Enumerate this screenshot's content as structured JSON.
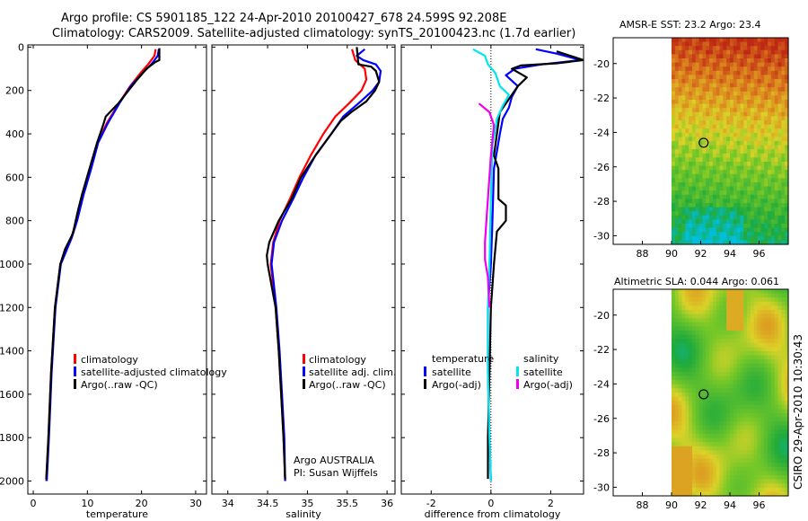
{
  "header": {
    "title_line1": "Argo profile: CS 5901185_122 24-Apr-2010 20100427_678 24.599S 92.208E",
    "title_line2": "Climatology: CARS2009. Satellite-adjusted climatology: synTS_20100423.nc (1.7d earlier)"
  },
  "colors": {
    "climatology": "#ff0000",
    "satellite": "#0000ff",
    "argo": "#000000",
    "salinity_satellite": "#00e5ee",
    "salinity_argo": "#ee00ee"
  },
  "chart_data": [
    {
      "id": "temperature",
      "type": "line",
      "xlabel": "temperature",
      "xlim": [
        -1,
        32
      ],
      "ylim": [
        2060,
        -10
      ],
      "xticks": [
        0,
        10,
        20,
        30
      ],
      "yticks": [
        0,
        200,
        400,
        600,
        800,
        1000,
        1200,
        1400,
        1600,
        1800,
        2000
      ],
      "legend": [
        "climatology",
        "satellite-adjusted climatology",
        "Argo(..raw -QC)"
      ],
      "series": [
        {
          "name": "climatology",
          "color_key": "climatology",
          "points": [
            [
              22.6,
              10
            ],
            [
              22.4,
              40
            ],
            [
              21.2,
              80
            ],
            [
              19.8,
              120
            ],
            [
              17.9,
              180
            ],
            [
              15.8,
              260
            ],
            [
              13.6,
              350
            ],
            [
              11.9,
              440
            ],
            [
              10.5,
              560
            ],
            [
              9.2,
              680
            ],
            [
              8,
              800
            ],
            [
              7,
              880
            ],
            [
              5,
              1000
            ],
            [
              4,
              1200
            ],
            [
              3.3,
              1500
            ],
            [
              2.8,
              1800
            ],
            [
              2.4,
              2000
            ]
          ]
        },
        {
          "name": "satellite-adjusted climatology",
          "color_key": "satellite",
          "points": [
            [
              23.2,
              10
            ],
            [
              23,
              40
            ],
            [
              21.8,
              80
            ],
            [
              20.2,
              120
            ],
            [
              18,
              180
            ],
            [
              15.9,
              260
            ],
            [
              13.8,
              350
            ],
            [
              12,
              440
            ],
            [
              10.7,
              560
            ],
            [
              9.3,
              680
            ],
            [
              8.1,
              800
            ],
            [
              7.1,
              880
            ],
            [
              5.1,
              1000
            ],
            [
              4.1,
              1200
            ],
            [
              3.4,
              1500
            ],
            [
              2.9,
              1800
            ],
            [
              2.5,
              2000
            ]
          ]
        },
        {
          "name": "Argo(..raw -QC)",
          "color_key": "argo",
          "points": [
            [
              23.3,
              5
            ],
            [
              23.3,
              60
            ],
            [
              22.5,
              70
            ],
            [
              20.9,
              100
            ],
            [
              19.2,
              150
            ],
            [
              17.6,
              200
            ],
            [
              15.7,
              260
            ],
            [
              13.4,
              320
            ],
            [
              12.9,
              360
            ],
            [
              11.8,
              440
            ],
            [
              10.4,
              560
            ],
            [
              9,
              680
            ],
            [
              8.2,
              760
            ],
            [
              7.3,
              860
            ],
            [
              5.9,
              930
            ],
            [
              5,
              1000
            ],
            [
              4,
              1200
            ],
            [
              3.3,
              1500
            ],
            [
              2.8,
              1800
            ],
            [
              2.4,
              1990
            ]
          ]
        }
      ]
    },
    {
      "id": "salinity",
      "type": "line",
      "xlabel": "salinity",
      "xlim": [
        33.8,
        36.1
      ],
      "ylim": [
        2060,
        -10
      ],
      "xticks": [
        34,
        34.5,
        35,
        35.5,
        36
      ],
      "yticks": [],
      "legend": [
        "climatology",
        "satellite adj. clim.",
        "Argo(..raw -QC)"
      ],
      "footnote": [
        "Argo AUSTRALIA",
        "PI: Susan Wijffels"
      ],
      "series": [
        {
          "name": "climatology",
          "color_key": "climatology",
          "points": [
            [
              35.56,
              10
            ],
            [
              35.6,
              60
            ],
            [
              35.72,
              100
            ],
            [
              35.74,
              150
            ],
            [
              35.68,
              200
            ],
            [
              35.52,
              260
            ],
            [
              35.35,
              320
            ],
            [
              35.2,
              400
            ],
            [
              35.04,
              500
            ],
            [
              34.9,
              600
            ],
            [
              34.78,
              700
            ],
            [
              34.65,
              800
            ],
            [
              34.57,
              900
            ],
            [
              34.54,
              1000
            ],
            [
              34.57,
              1100
            ],
            [
              34.6,
              1200
            ],
            [
              34.64,
              1400
            ],
            [
              34.67,
              1600
            ],
            [
              34.7,
              1800
            ],
            [
              34.72,
              2000
            ]
          ]
        },
        {
          "name": "satellite adj. clim.",
          "color_key": "satellite",
          "points": [
            [
              35.72,
              10
            ],
            [
              35.62,
              40
            ],
            [
              35.7,
              60
            ],
            [
              35.86,
              80
            ],
            [
              35.92,
              110
            ],
            [
              35.9,
              160
            ],
            [
              35.82,
              200
            ],
            [
              35.67,
              250
            ],
            [
              35.45,
              320
            ],
            [
              35.3,
              400
            ],
            [
              35.1,
              500
            ],
            [
              34.95,
              600
            ],
            [
              34.82,
              700
            ],
            [
              34.68,
              800
            ],
            [
              34.58,
              900
            ],
            [
              34.55,
              1000
            ],
            [
              34.58,
              1100
            ],
            [
              34.61,
              1200
            ],
            [
              34.65,
              1400
            ],
            [
              34.68,
              1600
            ],
            [
              34.71,
              1800
            ],
            [
              34.72,
              2000
            ]
          ]
        },
        {
          "name": "Argo(..raw -QC)",
          "color_key": "argo",
          "points": [
            [
              35.62,
              0
            ],
            [
              35.64,
              80
            ],
            [
              35.8,
              90
            ],
            [
              35.86,
              110
            ],
            [
              35.9,
              160
            ],
            [
              35.85,
              200
            ],
            [
              35.74,
              250
            ],
            [
              35.55,
              300
            ],
            [
              35.42,
              340
            ],
            [
              35.3,
              400
            ],
            [
              35.1,
              500
            ],
            [
              34.92,
              600
            ],
            [
              34.8,
              700
            ],
            [
              34.64,
              800
            ],
            [
              34.52,
              900
            ],
            [
              34.49,
              960
            ],
            [
              34.5,
              1000
            ],
            [
              34.55,
              1100
            ],
            [
              34.6,
              1200
            ],
            [
              34.64,
              1400
            ],
            [
              34.67,
              1600
            ],
            [
              34.7,
              1800
            ],
            [
              34.72,
              1990
            ]
          ]
        }
      ]
    },
    {
      "id": "difference",
      "type": "line",
      "xlabel": "difference from climatology",
      "xlim": [
        -3,
        3.1
      ],
      "ylim": [
        2060,
        -10
      ],
      "xticks": [
        -2,
        0,
        2
      ],
      "yticks": [],
      "legend_headers": [
        "temperature",
        "salinity"
      ],
      "legend_temperature": [
        "satellite",
        "Argo(-adj)"
      ],
      "legend_salinity": [
        "satellite",
        "Argo(-adj)"
      ],
      "series": [
        {
          "name": "temperature satellite",
          "color_key": "satellite",
          "points": [
            [
              1.5,
              10
            ],
            [
              2.2,
              30
            ],
            [
              3,
              60
            ],
            [
              1.7,
              80
            ],
            [
              0.8,
              100
            ],
            [
              0.5,
              130
            ],
            [
              0.9,
              180
            ],
            [
              0.7,
              230
            ],
            [
              0.6,
              280
            ],
            [
              0.4,
              330
            ],
            [
              0.3,
              400
            ],
            [
              0.2,
              480
            ],
            [
              0.1,
              560
            ],
            [
              0.05,
              800
            ],
            [
              0,
              1000
            ],
            [
              -0.1,
              1200
            ],
            [
              -0.1,
              1500
            ],
            [
              -0.05,
              1800
            ],
            [
              0,
              2000
            ]
          ]
        },
        {
          "name": "temperature Argo(-adj)",
          "color_key": "argo",
          "points": [
            [
              2.2,
              20
            ],
            [
              3.1,
              60
            ],
            [
              2.2,
              75
            ],
            [
              1,
              85
            ],
            [
              0.7,
              100
            ],
            [
              1.2,
              140
            ],
            [
              0.9,
              180
            ],
            [
              0.6,
              240
            ],
            [
              0.3,
              300
            ],
            [
              0.2,
              400
            ],
            [
              0.1,
              500
            ],
            [
              0.25,
              560
            ],
            [
              0.25,
              700
            ],
            [
              0.5,
              730
            ],
            [
              0.5,
              800
            ],
            [
              0.2,
              850
            ],
            [
              0.1,
              1000
            ],
            [
              0,
              1200
            ],
            [
              -0.05,
              1500
            ],
            [
              -0.1,
              1800
            ],
            [
              -0.1,
              1990
            ]
          ]
        },
        {
          "name": "salinity satellite",
          "color_key": "salinity_satellite",
          "points": [
            [
              -0.6,
              10
            ],
            [
              -0.2,
              40
            ],
            [
              -0.1,
              80
            ],
            [
              0.15,
              120
            ],
            [
              0.3,
              180
            ],
            [
              0.6,
              220
            ],
            [
              0.4,
              270
            ],
            [
              0.2,
              330
            ],
            [
              0.15,
              380
            ],
            [
              0.05,
              450
            ],
            [
              0,
              700
            ],
            [
              -0.05,
              1000
            ],
            [
              -0.1,
              1200
            ],
            [
              -0.1,
              1500
            ],
            [
              -0.05,
              1800
            ],
            [
              0,
              2000
            ]
          ]
        },
        {
          "name": "salinity Argo(-adj)",
          "color_key": "salinity_argo",
          "points": [
            [
              -0.4,
              260
            ],
            [
              -0.05,
              300
            ],
            [
              0.1,
              360
            ],
            [
              0.05,
              430
            ],
            [
              0,
              500
            ],
            [
              -0.15,
              800
            ],
            [
              -0.2,
              900
            ],
            [
              -0.2,
              980
            ],
            [
              -0.1,
              1060
            ],
            [
              -0.05,
              1200
            ]
          ]
        }
      ]
    },
    {
      "id": "sst_map",
      "type": "heatmap",
      "title": "AMSR-E SST: 23.2 Argo: 23.4",
      "xlim": [
        86,
        98
      ],
      "ylim": [
        -30.5,
        -18.5
      ],
      "xticks": [
        88,
        90,
        92,
        94,
        96
      ],
      "yticks": [
        -20,
        -22,
        -24,
        -26,
        -28,
        -30
      ],
      "data_lon_range": [
        90,
        98
      ],
      "argo_position": [
        92.2,
        -24.6
      ]
    },
    {
      "id": "sla_map",
      "type": "heatmap",
      "title": "Altimetric SLA: 0.044 Argo: 0.061",
      "xlim": [
        86,
        98
      ],
      "ylim": [
        -30.5,
        -18.5
      ],
      "xticks": [
        88,
        90,
        92,
        94,
        96
      ],
      "yticks": [
        -20,
        -22,
        -24,
        -26,
        -28,
        -30
      ],
      "data_lon_range": [
        90,
        98
      ],
      "argo_position": [
        92.2,
        -24.6
      ]
    }
  ],
  "credit": "CSIRO 29-Apr-2010 10:30:43"
}
